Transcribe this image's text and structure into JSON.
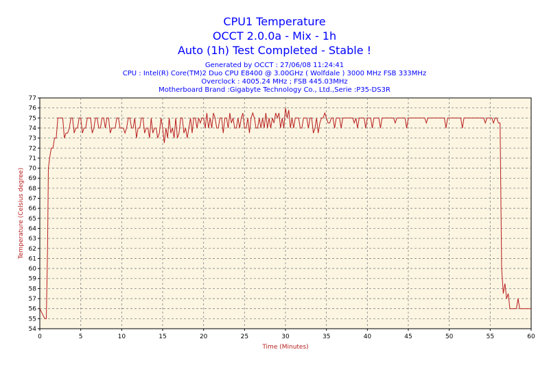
{
  "header": {
    "title": "CPU1 Temperature",
    "subtitle": "OCCT 2.0.0a - Mix - 1h",
    "status": "Auto (1h) Test Completed - Stable !",
    "generated": "Generated by OCCT : 27/06/08 11:24:41",
    "cpu": "CPU : Intel(R) Core(TM)2 Duo CPU E8400 @ 3.00GHz ( Wolfdale ) 3000 MHz FSB 333MHz",
    "overclock": "Overclock : 4005.24 MHz ; FSB 445.03MHz",
    "motherboard": "Motherboard Brand :Gigabyte Technology Co., Ltd.,Serie :P35-DS3R"
  },
  "colors": {
    "plot_background": "#fbf5e2",
    "grid": "#808080",
    "line": "#b81d1d",
    "title": "#0000ff",
    "axis_label": "#b81d1d"
  },
  "chart_data": {
    "type": "line",
    "xlabel": "Time (Minutes)",
    "ylabel": "Temperature (Celsius degree)",
    "xlim": [
      0,
      60
    ],
    "ylim": [
      54,
      77
    ],
    "x_ticks": [
      0,
      5,
      10,
      15,
      20,
      25,
      30,
      35,
      40,
      45,
      50,
      55,
      60
    ],
    "y_ticks": [
      54,
      55,
      56,
      57,
      58,
      59,
      60,
      61,
      62,
      63,
      64,
      65,
      66,
      67,
      68,
      69,
      70,
      71,
      72,
      73,
      74,
      75,
      76,
      77
    ],
    "grid": true,
    "series": [
      {
        "x": [
          0,
          0.3,
          0.6,
          0.8,
          0.95,
          1.05,
          1.2,
          1.4,
          1.6,
          1.8,
          2.0,
          2.2,
          2.3,
          2.5,
          2.8,
          3.0,
          3.2,
          3.4,
          3.6,
          3.8,
          4.0,
          4.2,
          4.4,
          4.6,
          4.8,
          5.0,
          5.2,
          5.4,
          5.6,
          5.8,
          6.0,
          6.2,
          6.4,
          6.6,
          6.8,
          7.0,
          7.2,
          7.4,
          7.6,
          7.8,
          8.0,
          8.2,
          8.4,
          8.6,
          8.8,
          9.0,
          9.2,
          9.4,
          9.6,
          9.8,
          10.0,
          10.2,
          10.4,
          10.6,
          10.8,
          11.0,
          11.2,
          11.4,
          11.6,
          11.8,
          12.0,
          12.2,
          12.4,
          12.6,
          12.8,
          13.0,
          13.2,
          13.4,
          13.6,
          13.8,
          14.0,
          14.2,
          14.4,
          14.6,
          14.8,
          15.0,
          15.2,
          15.4,
          15.6,
          15.8,
          16.0,
          16.2,
          16.4,
          16.6,
          16.8,
          17.0,
          17.2,
          17.4,
          17.6,
          17.8,
          18.0,
          18.2,
          18.4,
          18.6,
          18.8,
          19.0,
          19.2,
          19.4,
          19.6,
          19.8,
          20.0,
          20.2,
          20.4,
          20.6,
          20.8,
          21.0,
          21.2,
          21.4,
          21.6,
          21.8,
          22.0,
          22.2,
          22.4,
          22.6,
          22.8,
          23.0,
          23.2,
          23.4,
          23.6,
          23.8,
          24.0,
          24.2,
          24.4,
          24.6,
          24.8,
          25.0,
          25.2,
          25.4,
          25.6,
          25.8,
          26.0,
          26.2,
          26.4,
          26.6,
          26.8,
          27.0,
          27.2,
          27.4,
          27.6,
          27.8,
          28.0,
          28.2,
          28.4,
          28.6,
          28.8,
          29.0,
          29.2,
          29.4,
          29.6,
          29.8,
          30.0,
          30.2,
          30.4,
          30.6,
          30.8,
          31.0,
          31.2,
          31.4,
          31.6,
          31.8,
          32.0,
          32.2,
          32.4,
          32.6,
          32.8,
          33.0,
          33.2,
          33.4,
          33.6,
          33.8,
          34.0,
          34.2,
          34.4,
          34.6,
          34.8,
          35.0,
          35.2,
          35.4,
          35.6,
          35.8,
          36.0,
          36.2,
          36.4,
          36.6,
          36.8,
          37.0,
          37.2,
          37.4,
          37.6,
          37.8,
          38.0,
          38.2,
          38.4,
          38.6,
          38.8,
          39.0,
          39.2,
          39.4,
          39.6,
          39.8,
          40.0,
          40.2,
          40.4,
          40.6,
          40.8,
          41.0,
          41.2,
          41.4,
          41.6,
          41.8,
          42.0,
          42.2,
          42.4,
          42.6,
          42.8,
          43.0,
          43.2,
          43.4,
          43.6,
          43.8,
          44.0,
          44.2,
          44.4,
          44.6,
          44.8,
          45.0,
          45.2,
          45.4,
          45.6,
          45.8,
          46.0,
          46.2,
          46.4,
          46.6,
          46.8,
          47.0,
          47.2,
          47.4,
          47.6,
          47.8,
          48.0,
          48.2,
          48.4,
          48.6,
          48.8,
          49.0,
          49.2,
          49.4,
          49.6,
          49.8,
          50.0,
          50.2,
          50.4,
          50.6,
          50.8,
          51.0,
          51.2,
          51.4,
          51.6,
          51.8,
          52.0,
          52.2,
          52.4,
          52.6,
          52.8,
          53.0,
          53.2,
          53.4,
          53.6,
          53.8,
          54.0,
          54.2,
          54.4,
          54.6,
          54.8,
          55.0,
          55.2,
          55.4,
          55.6,
          55.8,
          56.0,
          56.2,
          56.4,
          56.6,
          56.8,
          57.0,
          57.2,
          57.4,
          57.6,
          57.8,
          58.0,
          58.2,
          58.4,
          58.6,
          58.8,
          59.0,
          59.3,
          59.6,
          60.0
        ],
        "y": [
          56,
          55.5,
          55,
          55,
          62,
          70,
          71,
          72,
          72,
          73,
          73,
          75,
          75,
          75,
          75,
          73,
          73.5,
          73.5,
          74,
          75,
          75,
          73.5,
          74,
          74,
          75,
          75,
          73.5,
          74,
          74,
          75,
          75,
          75,
          73.5,
          74,
          75,
          75,
          74,
          74,
          75,
          75,
          74,
          75,
          75,
          73.5,
          74,
          74,
          74,
          75,
          75,
          74,
          74,
          74,
          73.5,
          74,
          75,
          75,
          74,
          74,
          75,
          73,
          74,
          74,
          75,
          75,
          73.5,
          74,
          74,
          73,
          75,
          73.5,
          74,
          74,
          73,
          73.5,
          75,
          74,
          72.5,
          74,
          73,
          75,
          73.5,
          74,
          73,
          75,
          73,
          73.5,
          75,
          75,
          73.5,
          74,
          73,
          74,
          75,
          73.5,
          75,
          75,
          74,
          75,
          74.5,
          75,
          75,
          74,
          75.5,
          74,
          75,
          74,
          75.5,
          75,
          74,
          74,
          75,
          75,
          73.5,
          75,
          75,
          74,
          75.5,
          74.5,
          75,
          74,
          74,
          75,
          74,
          75,
          75.5,
          74,
          74,
          75,
          73.5,
          75,
          75.5,
          75,
          74,
          74,
          75,
          74,
          75,
          74,
          75.5,
          74,
          75,
          74,
          75,
          74.5,
          75.5,
          75,
          75.5,
          74,
          75,
          74,
          76,
          75,
          75.8,
          74,
          75,
          74,
          75,
          75,
          75,
          74,
          74,
          75,
          75,
          75,
          74,
          75,
          75,
          73.5,
          74,
          75,
          73.5,
          74.5,
          75,
          75,
          75.5,
          75,
          74.5,
          74.5,
          75,
          75,
          74,
          75,
          75,
          75,
          74,
          75,
          75,
          75,
          75,
          75,
          75,
          75,
          74.5,
          75,
          74,
          75,
          75,
          75,
          75,
          74,
          75,
          75,
          75,
          74,
          75,
          75,
          75,
          75,
          74,
          75,
          75,
          75,
          75,
          75,
          75,
          75,
          75,
          74.5,
          75,
          75,
          75,
          75,
          75,
          75,
          74,
          75,
          75,
          75,
          75,
          75,
          75,
          75,
          75,
          75,
          75,
          75,
          74.5,
          75,
          75,
          75,
          75,
          75,
          75,
          75,
          75,
          75,
          75,
          75,
          74,
          75,
          75,
          75,
          75,
          75,
          75,
          75,
          75,
          75,
          74,
          75,
          75,
          75,
          75,
          75,
          75,
          75,
          75,
          75,
          75,
          75,
          75,
          75,
          74.5,
          75,
          75,
          75,
          75,
          74.5,
          75,
          75,
          74.5,
          74.5,
          60,
          57.5,
          58.5,
          57,
          57.5,
          56,
          56,
          56,
          56,
          56,
          57,
          56,
          56,
          56,
          56,
          56,
          56
        ]
      }
    ]
  }
}
